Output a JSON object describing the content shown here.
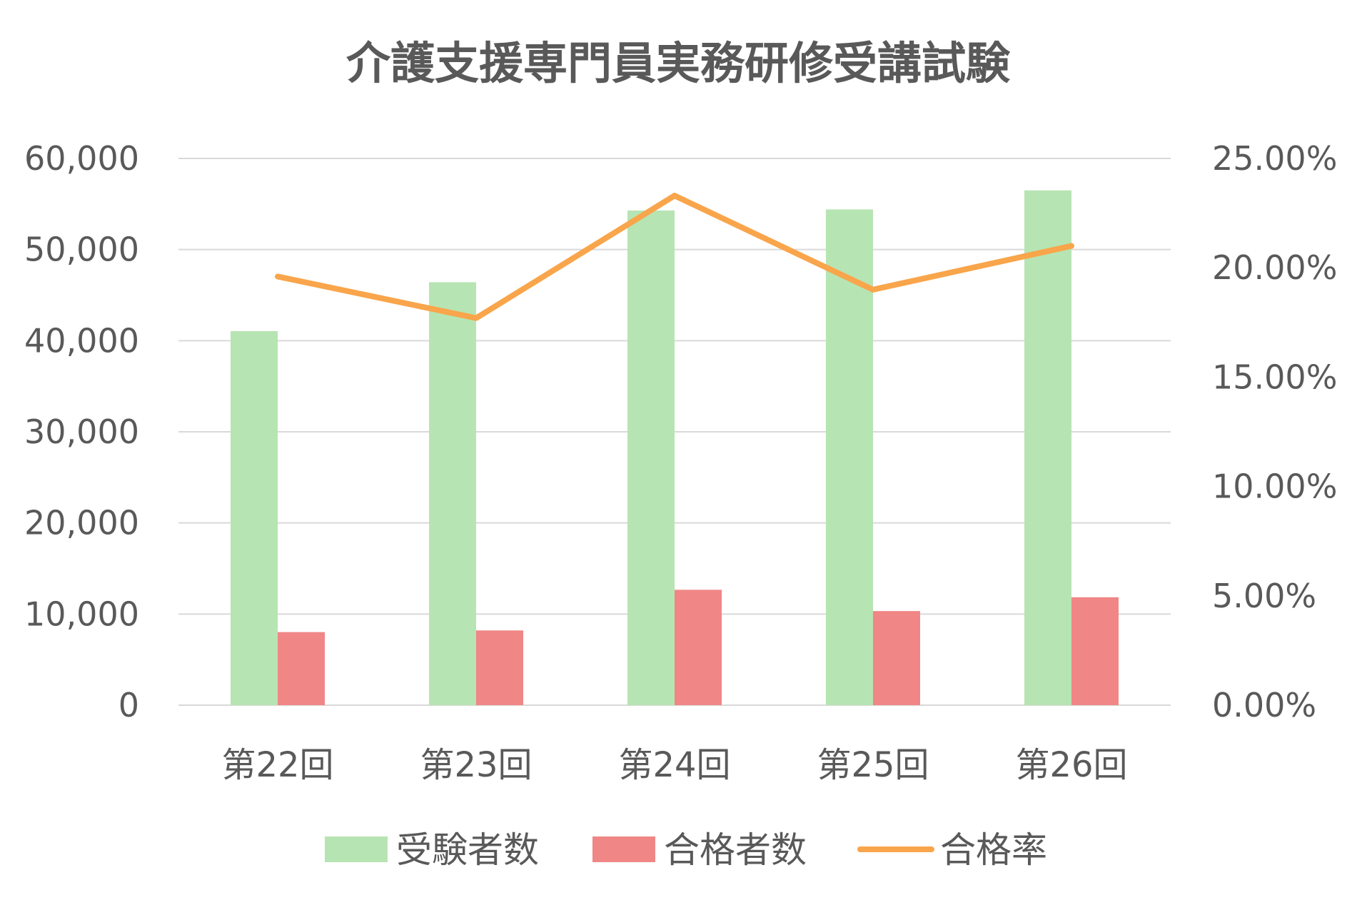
{
  "chart_data": {
    "type": "bar",
    "title": "介護支援専門員実務研修受講試験",
    "categories": [
      "第22回",
      "第23回",
      "第24回",
      "第25回",
      "第26回"
    ],
    "series": [
      {
        "name": "受験者数",
        "type": "bar",
        "axis": "left",
        "color": "#b7e4b3",
        "values": [
          41049,
          46415,
          54290,
          54406,
          56494
        ]
      },
      {
        "name": "合格者数",
        "type": "bar",
        "axis": "left",
        "color": "#f08686",
        "values": [
          8018,
          8200,
          12662,
          10328,
          11844
        ]
      },
      {
        "name": "合格率",
        "type": "line",
        "axis": "right",
        "color": "#f9a54b",
        "values": [
          0.196,
          0.177,
          0.233,
          0.19,
          0.21
        ]
      }
    ],
    "y_left": {
      "min": 0,
      "max": 60000,
      "step": 10000,
      "tick_labels": [
        "0",
        "10,000",
        "20,000",
        "30,000",
        "40,000",
        "50,000",
        "60,000"
      ]
    },
    "y_right": {
      "min": 0,
      "max": 0.25,
      "step": 0.05,
      "tick_labels": [
        "0.00%",
        "5.00%",
        "10.00%",
        "15.00%",
        "20.00%",
        "25.00%"
      ]
    },
    "grid": true,
    "legend_position": "bottom"
  }
}
